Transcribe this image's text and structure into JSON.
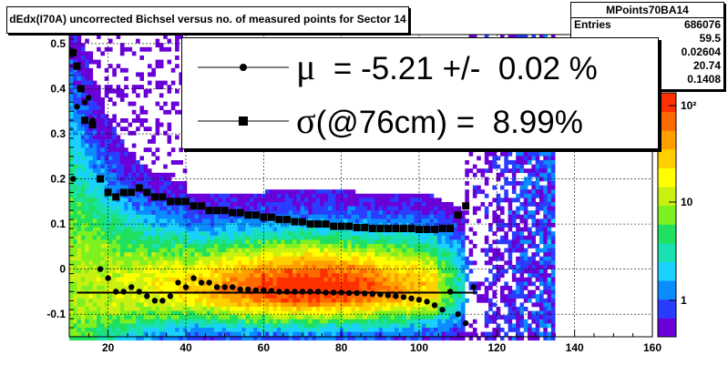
{
  "chart_data": {
    "type": "heatmap",
    "title": "dEdx(I70A) uncorrected Bichsel versus no. of measured points for Sector 14",
    "xlabel": "",
    "ylabel": "",
    "xlim": [
      10,
      160
    ],
    "ylim": [
      -0.15,
      0.52
    ],
    "x_ticks": [
      20,
      40,
      60,
      80,
      100,
      120,
      140,
      160
    ],
    "y_ticks": [
      -0.1,
      0,
      0.1,
      0.2,
      0.3,
      0.4,
      0.5
    ],
    "color_scale": {
      "type": "log",
      "ticks": [
        "1",
        "10",
        "10²"
      ]
    },
    "grid": true,
    "stats": {
      "name": "MPoints70BA14",
      "rows": [
        {
          "label": "Entries",
          "value": "686076"
        },
        {
          "label": "",
          "value": "59.5"
        },
        {
          "label": "",
          "value": "0.02604"
        },
        {
          "label": "",
          "value": "20.74"
        },
        {
          "label": "",
          "value": "0.1408"
        }
      ]
    },
    "legend": [
      {
        "symbol": "circle",
        "symbol_name": "mu-marker-icon",
        "label_symbol": "μ",
        "label_text": "  = -5.21 +/-  0.02 %"
      },
      {
        "symbol": "square",
        "symbol_name": "sigma-marker-icon",
        "label_symbol": "σ",
        "label_text": "(@76cm) =  8.99%"
      }
    ],
    "fit_line": {
      "name": "mean-fit-line",
      "x": [
        12,
        115
      ],
      "y": [
        -0.052,
        -0.052
      ]
    },
    "series": [
      {
        "name": "μ",
        "marker": "circle",
        "x": [
          11,
          12,
          13,
          14,
          15,
          16,
          18,
          20,
          22,
          24,
          26,
          28,
          30,
          32,
          34,
          36,
          38,
          40,
          42,
          44,
          46,
          48,
          50,
          52,
          54,
          56,
          58,
          60,
          62,
          64,
          66,
          68,
          70,
          72,
          74,
          76,
          78,
          80,
          82,
          84,
          86,
          88,
          90,
          92,
          94,
          96,
          98,
          100,
          102,
          104,
          106,
          108,
          110,
          112,
          114
        ],
        "y": [
          0.2,
          0.36,
          0.4,
          0.37,
          0.38,
          0.33,
          0.0,
          -0.02,
          -0.05,
          -0.05,
          -0.04,
          -0.05,
          -0.06,
          -0.07,
          -0.07,
          -0.06,
          -0.03,
          -0.04,
          -0.02,
          -0.03,
          -0.03,
          -0.04,
          -0.04,
          -0.04,
          -0.045,
          -0.045,
          -0.047,
          -0.047,
          -0.048,
          -0.05,
          -0.05,
          -0.05,
          -0.05,
          -0.05,
          -0.05,
          -0.052,
          -0.052,
          -0.052,
          -0.053,
          -0.053,
          -0.054,
          -0.055,
          -0.056,
          -0.058,
          -0.06,
          -0.062,
          -0.065,
          -0.068,
          -0.072,
          -0.08,
          -0.09,
          -0.05,
          -0.1,
          -0.12,
          -0.04
        ]
      },
      {
        "name": "σ",
        "marker": "square",
        "x": [
          11,
          12,
          13,
          14,
          16,
          18,
          20,
          22,
          24,
          26,
          28,
          30,
          32,
          34,
          36,
          38,
          40,
          42,
          44,
          46,
          48,
          50,
          52,
          54,
          56,
          58,
          60,
          62,
          64,
          66,
          68,
          70,
          72,
          74,
          76,
          78,
          80,
          82,
          84,
          86,
          88,
          90,
          92,
          94,
          96,
          98,
          100,
          102,
          104,
          106,
          108,
          110,
          112
        ],
        "y": [
          0.48,
          0.45,
          0.4,
          0.33,
          0.32,
          0.2,
          0.17,
          0.16,
          0.17,
          0.17,
          0.18,
          0.17,
          0.16,
          0.16,
          0.15,
          0.15,
          0.15,
          0.14,
          0.14,
          0.13,
          0.13,
          0.13,
          0.125,
          0.125,
          0.12,
          0.12,
          0.115,
          0.115,
          0.11,
          0.11,
          0.105,
          0.105,
          0.1,
          0.1,
          0.1,
          0.095,
          0.095,
          0.095,
          0.092,
          0.092,
          0.09,
          0.09,
          0.09,
          0.09,
          0.09,
          0.09,
          0.088,
          0.088,
          0.088,
          0.09,
          0.09,
          0.12,
          0.14
        ]
      }
    ]
  }
}
